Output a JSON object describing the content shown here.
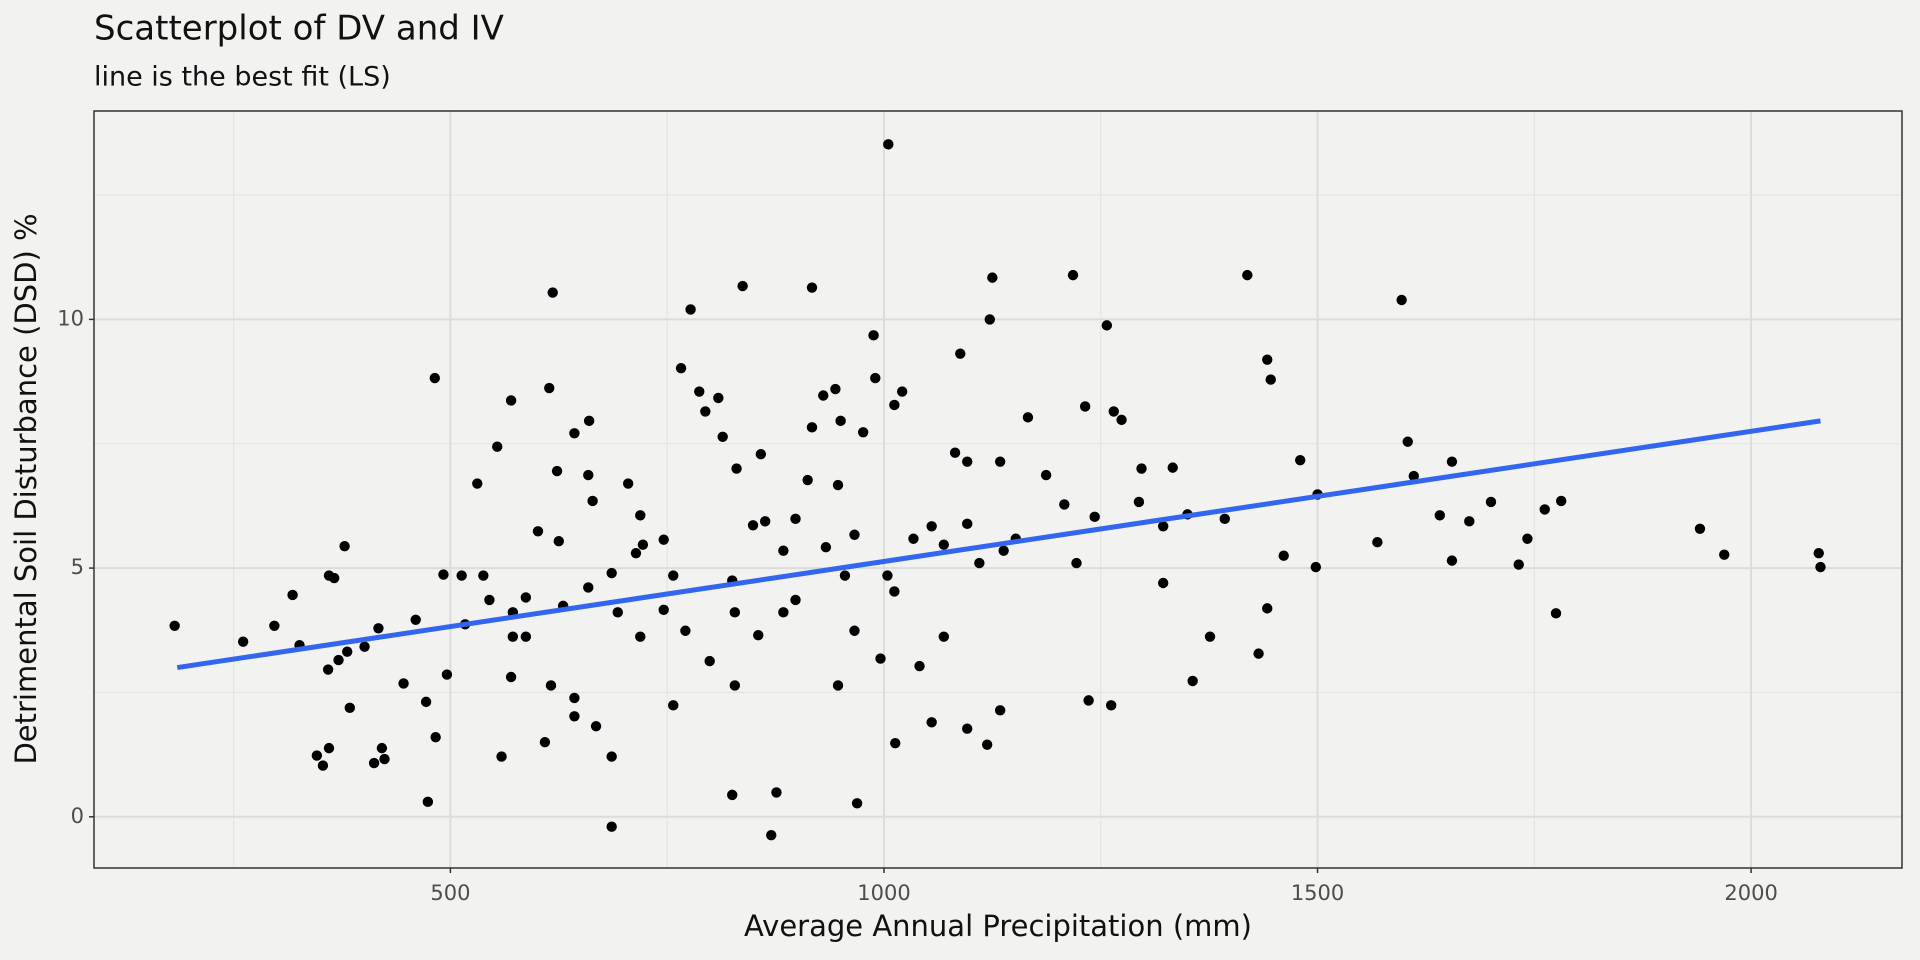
{
  "chart_data": {
    "type": "scatter",
    "title": "Scatterplot of DV and IV",
    "subtitle": "line is the best fit (LS)",
    "x_label": "Average Annual Precipitation (mm)",
    "y_label": "Detrimental Soil Disturbance (DSD) %",
    "color": "#000000",
    "grid": true,
    "xlim": [
      89,
      2174
    ],
    "xticks": [
      500,
      1000,
      1500,
      2000
    ],
    "x_minor_grid": [
      250,
      750,
      1250,
      1750
    ],
    "ylim": [
      -1.03,
      14.19
    ],
    "yticks": [
      0,
      5,
      10
    ],
    "y_minor_grid": [
      2.5,
      7.5,
      12.5
    ],
    "x": [
      182,
      261,
      297,
      318,
      326,
      346,
      353,
      359,
      360,
      366,
      360,
      371,
      378,
      381,
      384,
      401,
      412,
      417,
      421,
      424,
      446,
      460,
      472,
      474,
      482,
      483,
      492,
      496,
      513,
      531,
      538,
      554,
      559,
      570,
      587,
      570,
      601,
      614,
      618,
      623,
      625,
      609,
      643,
      660,
      664,
      659,
      643,
      686,
      686,
      668,
      705,
      719,
      722,
      746,
      686,
      714,
      766,
      777,
      787,
      794,
      809,
      814,
      837,
      830,
      858,
      863,
      876,
      870,
      825,
      825,
      917,
      917,
      930,
      944,
      950,
      947,
      988,
      990,
      1005,
      1012,
      1021,
      1013,
      969,
      996,
      1088,
      1122,
      1125,
      1082,
      1096,
      1134,
      1166,
      1119,
      1134,
      1218,
      1232,
      1257,
      1265,
      1274,
      1236,
      1262,
      1297,
      1333,
      1356,
      1376,
      1419,
      1442,
      1446,
      1432,
      1442,
      1461,
      1480,
      1500,
      1498,
      1569,
      1597,
      1604,
      1611,
      1641,
      1655,
      1655,
      1675,
      1700,
      1732,
      1742,
      1762,
      1775,
      1781,
      1941,
      1969,
      2078,
      2080,
      849,
      884,
      898,
      912,
      933,
      955,
      966,
      976,
      1012,
      1034,
      1055,
      1069,
      1096,
      1110,
      1152,
      1187,
      1208,
      1243,
      1294,
      1322,
      1350,
      1393,
      1055,
      1096,
      1041,
      966,
      898,
      855,
      799,
      771,
      746,
      719,
      693,
      659,
      630,
      587,
      572,
      545,
      517,
      616,
      643,
      572,
      757,
      828,
      757,
      828,
      884,
      947,
      1004,
      1069,
      1138,
      1222,
      1322
    ],
    "values": [
      3.84,
      3.52,
      3.84,
      4.46,
      3.45,
      1.23,
      1.03,
      2.96,
      4.85,
      4.8,
      1.38,
      3.15,
      5.44,
      3.32,
      2.19,
      3.42,
      1.08,
      3.79,
      1.38,
      1.16,
      2.68,
      3.96,
      2.31,
      0.3,
      8.82,
      1.6,
      4.87,
      2.86,
      4.85,
      6.7,
      4.85,
      7.44,
      1.21,
      8.37,
      4.41,
      2.81,
      5.74,
      8.62,
      10.54,
      6.95,
      5.54,
      1.5,
      7.71,
      7.96,
      6.35,
      6.87,
      2.39,
      -0.2,
      1.21,
      1.82,
      6.7,
      6.06,
      5.47,
      5.57,
      4.9,
      5.3,
      9.02,
      10.2,
      8.55,
      8.15,
      8.42,
      7.64,
      10.67,
      7.0,
      7.29,
      5.94,
      0.49,
      -0.37,
      0.44,
      4.75,
      10.64,
      7.83,
      8.47,
      8.6,
      7.96,
      6.67,
      9.68,
      8.82,
      13.52,
      8.28,
      8.55,
      1.48,
      0.27,
      3.18,
      9.31,
      10.0,
      10.84,
      7.32,
      7.14,
      7.14,
      8.03,
      1.45,
      2.14,
      10.89,
      8.25,
      9.88,
      8.15,
      7.98,
      2.34,
      2.24,
      7.0,
      7.02,
      2.73,
      3.62,
      10.89,
      9.19,
      8.79,
      3.28,
      4.19,
      5.25,
      7.17,
      6.48,
      5.02,
      5.52,
      10.39,
      7.54,
      6.85,
      6.06,
      7.14,
      5.15,
      5.94,
      6.33,
      5.07,
      5.59,
      6.18,
      4.09,
      6.35,
      5.79,
      5.27,
      5.3,
      5.02,
      5.86,
      5.35,
      5.99,
      6.77,
      5.42,
      4.85,
      5.67,
      7.73,
      4.53,
      5.59,
      5.84,
      5.47,
      5.89,
      5.1,
      5.59,
      6.87,
      6.28,
      6.03,
      6.33,
      5.84,
      6.08,
      5.99,
      1.9,
      1.77,
      3.03,
      3.74,
      4.36,
      3.65,
      3.13,
      3.74,
      4.16,
      3.62,
      4.11,
      4.61,
      4.24,
      3.62,
      4.11,
      4.36,
      3.87,
      2.64,
      2.02,
      3.62,
      4.85,
      4.11,
      2.24,
      2.64,
      4.11,
      2.64,
      4.85,
      3.62,
      5.35,
      5.1,
      4.7
    ],
    "fit_line": {
      "x": [
        185,
        2080
      ],
      "y": [
        3.0,
        7.96
      ]
    },
    "fit_color": "#3366ee"
  }
}
